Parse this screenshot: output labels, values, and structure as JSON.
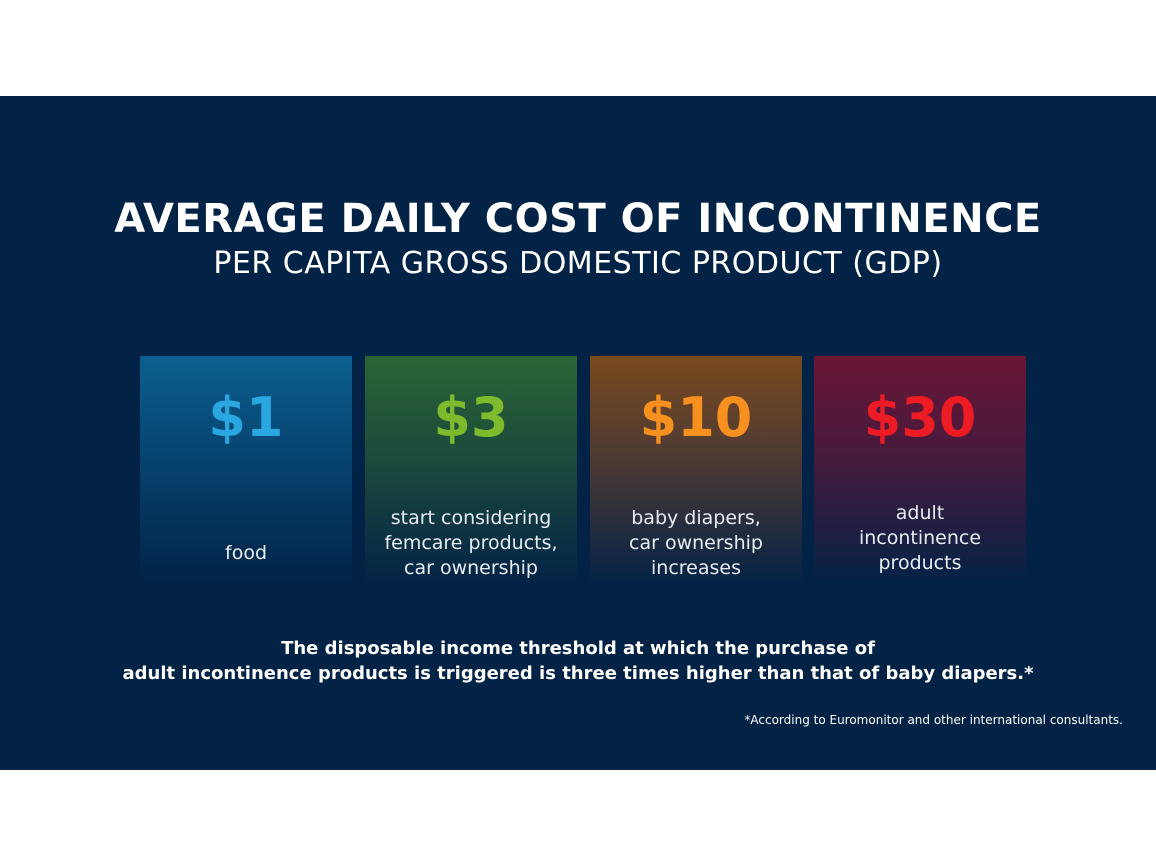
{
  "title": "AVERAGE DAILY COST OF INCONTINENCE",
  "subtitle": "PER CAPITA GROSS DOMESTIC PRODUCT (GDP)",
  "cards": [
    {
      "amount": "$1",
      "description": "food",
      "color": "#2aa6e0"
    },
    {
      "amount": "$3",
      "description": "start considering\nfemcare products,\ncar ownership",
      "color": "#7dbb2c"
    },
    {
      "amount": "$10",
      "description": "baby diapers,\ncar ownership\nincreases",
      "color": "#f7901e"
    },
    {
      "amount": "$30",
      "description": "adult\nincontinence\nproducts",
      "color": "#ed1c24"
    }
  ],
  "note": {
    "line1": "The disposable income threshold at which the purchase of",
    "line2": "adult incontinence products is triggered is three times higher than that of baby diapers.*"
  },
  "source": "*According to Euromonitor and other international consultants.",
  "colors": {
    "background": "#022246",
    "text": "#ffffff"
  }
}
